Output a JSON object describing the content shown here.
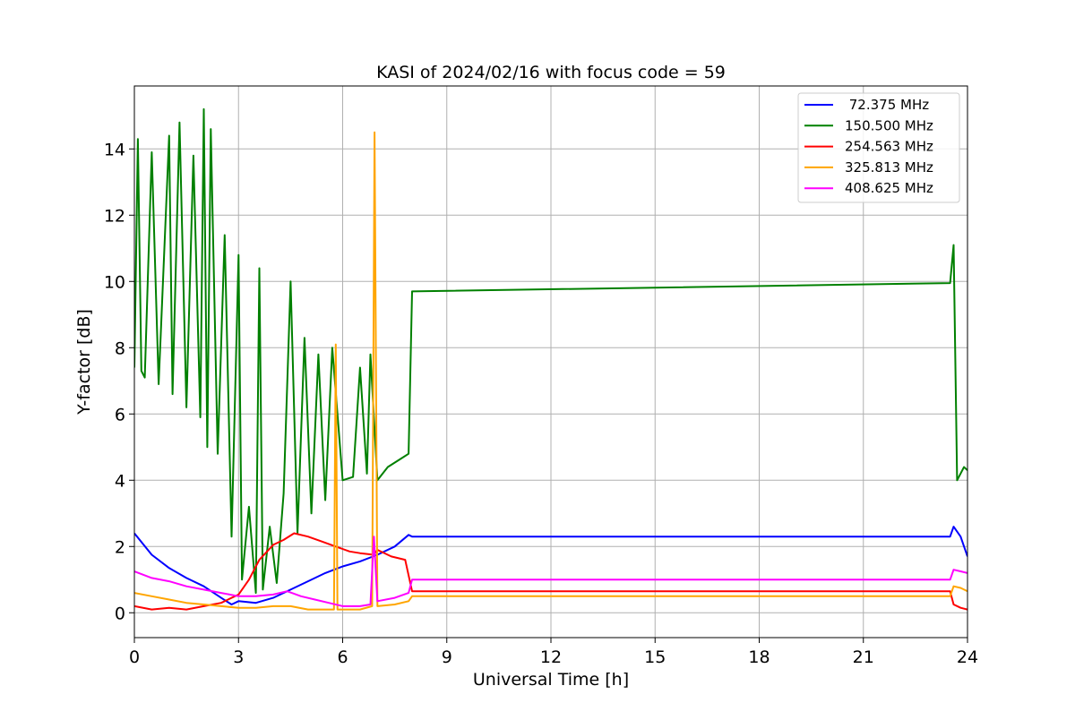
{
  "chart_data": {
    "type": "line",
    "title": "KASI of 2024/02/16 with focus code = 59",
    "xlabel": "Universal Time [h]",
    "ylabel": "Y-factor [dB]",
    "xlim": [
      0,
      24
    ],
    "ylim": [
      -0.75,
      15.9
    ],
    "xticks": [
      0,
      3,
      6,
      9,
      12,
      15,
      18,
      21,
      24
    ],
    "yticks": [
      0,
      2,
      4,
      6,
      8,
      10,
      12,
      14
    ],
    "grid": true,
    "legend_position": "top-right",
    "series": [
      {
        "name": " 72.375 MHz",
        "color": "#0000ff",
        "x": [
          0,
          0.5,
          1,
          1.5,
          2,
          2.5,
          2.8,
          3,
          3.5,
          4,
          4.5,
          5,
          5.5,
          6,
          6.5,
          7,
          7.5,
          7.9,
          8,
          23.5,
          23.6,
          23.8,
          24
        ],
        "y": [
          2.4,
          1.75,
          1.35,
          1.05,
          0.8,
          0.45,
          0.25,
          0.35,
          0.3,
          0.45,
          0.7,
          0.95,
          1.2,
          1.4,
          1.55,
          1.75,
          2.0,
          2.35,
          2.3,
          2.3,
          2.6,
          2.3,
          1.7
        ]
      },
      {
        "name": "150.500 MHz",
        "color": "#008000",
        "x": [
          0,
          0.1,
          0.2,
          0.3,
          0.5,
          0.7,
          1,
          1.1,
          1.3,
          1.5,
          1.7,
          1.9,
          2,
          2.1,
          2.2,
          2.4,
          2.6,
          2.8,
          3,
          3.1,
          3.3,
          3.5,
          3.6,
          3.7,
          3.9,
          4.1,
          4.3,
          4.5,
          4.7,
          4.9,
          5.1,
          5.3,
          5.5,
          5.7,
          6,
          6.3,
          6.5,
          6.7,
          6.8,
          7,
          7.3,
          7.6,
          7.9,
          8,
          23.5,
          23.6,
          23.7,
          23.9,
          24
        ],
        "y": [
          7.4,
          14.3,
          7.3,
          7.1,
          13.9,
          6.9,
          14.4,
          6.6,
          14.8,
          6.2,
          13.8,
          5.9,
          15.2,
          5.0,
          14.6,
          4.8,
          11.4,
          2.3,
          10.8,
          1.0,
          3.2,
          0.6,
          10.4,
          0.7,
          2.6,
          0.9,
          3.6,
          10.0,
          2.4,
          8.3,
          3.0,
          7.8,
          3.4,
          8.0,
          4.0,
          4.1,
          7.4,
          4.2,
          7.8,
          4.0,
          4.4,
          4.6,
          4.8,
          9.7,
          9.95,
          11.1,
          4.0,
          4.4,
          4.3
        ]
      },
      {
        "name": "254.563 MHz",
        "color": "#ff0000",
        "x": [
          0,
          0.5,
          1,
          1.5,
          2,
          2.5,
          3,
          3.3,
          3.6,
          4,
          4.3,
          4.6,
          5,
          5.4,
          5.8,
          6.2,
          6.5,
          6.9,
          7,
          7.4,
          7.8,
          8,
          23.5,
          23.6,
          23.8,
          24
        ],
        "y": [
          0.2,
          0.1,
          0.15,
          0.1,
          0.2,
          0.3,
          0.55,
          1.0,
          1.6,
          2.05,
          2.2,
          2.4,
          2.3,
          2.15,
          2.0,
          1.85,
          1.8,
          1.75,
          1.9,
          1.7,
          1.6,
          0.65,
          0.65,
          0.25,
          0.15,
          0.1
        ]
      },
      {
        "name": "325.813 MHz",
        "color": "#ffa500",
        "x": [
          0,
          0.5,
          1,
          1.5,
          2,
          2.5,
          3,
          3.5,
          4,
          4.5,
          5,
          5.5,
          5.75,
          5.8,
          5.85,
          6,
          6.5,
          6.85,
          6.92,
          7,
          7.5,
          7.9,
          8,
          23.5,
          23.6,
          23.8,
          24
        ],
        "y": [
          0.6,
          0.5,
          0.4,
          0.3,
          0.25,
          0.2,
          0.15,
          0.15,
          0.2,
          0.2,
          0.1,
          0.1,
          0.1,
          8.1,
          0.1,
          0.1,
          0.1,
          0.2,
          14.5,
          0.2,
          0.25,
          0.35,
          0.5,
          0.5,
          0.8,
          0.75,
          0.65
        ]
      },
      {
        "name": "408.625 MHz",
        "color": "#ff00ff",
        "x": [
          0,
          0.5,
          1,
          1.5,
          2,
          2.5,
          3,
          3.5,
          4,
          4.4,
          4.8,
          5.2,
          5.6,
          6,
          6.5,
          6.8,
          6.9,
          7,
          7.5,
          7.9,
          8,
          23.5,
          23.6,
          23.8,
          24
        ],
        "y": [
          1.25,
          1.05,
          0.95,
          0.8,
          0.7,
          0.6,
          0.5,
          0.5,
          0.55,
          0.65,
          0.5,
          0.4,
          0.3,
          0.2,
          0.2,
          0.25,
          2.3,
          0.35,
          0.45,
          0.6,
          1.0,
          1.0,
          1.3,
          1.25,
          1.2
        ]
      }
    ]
  }
}
